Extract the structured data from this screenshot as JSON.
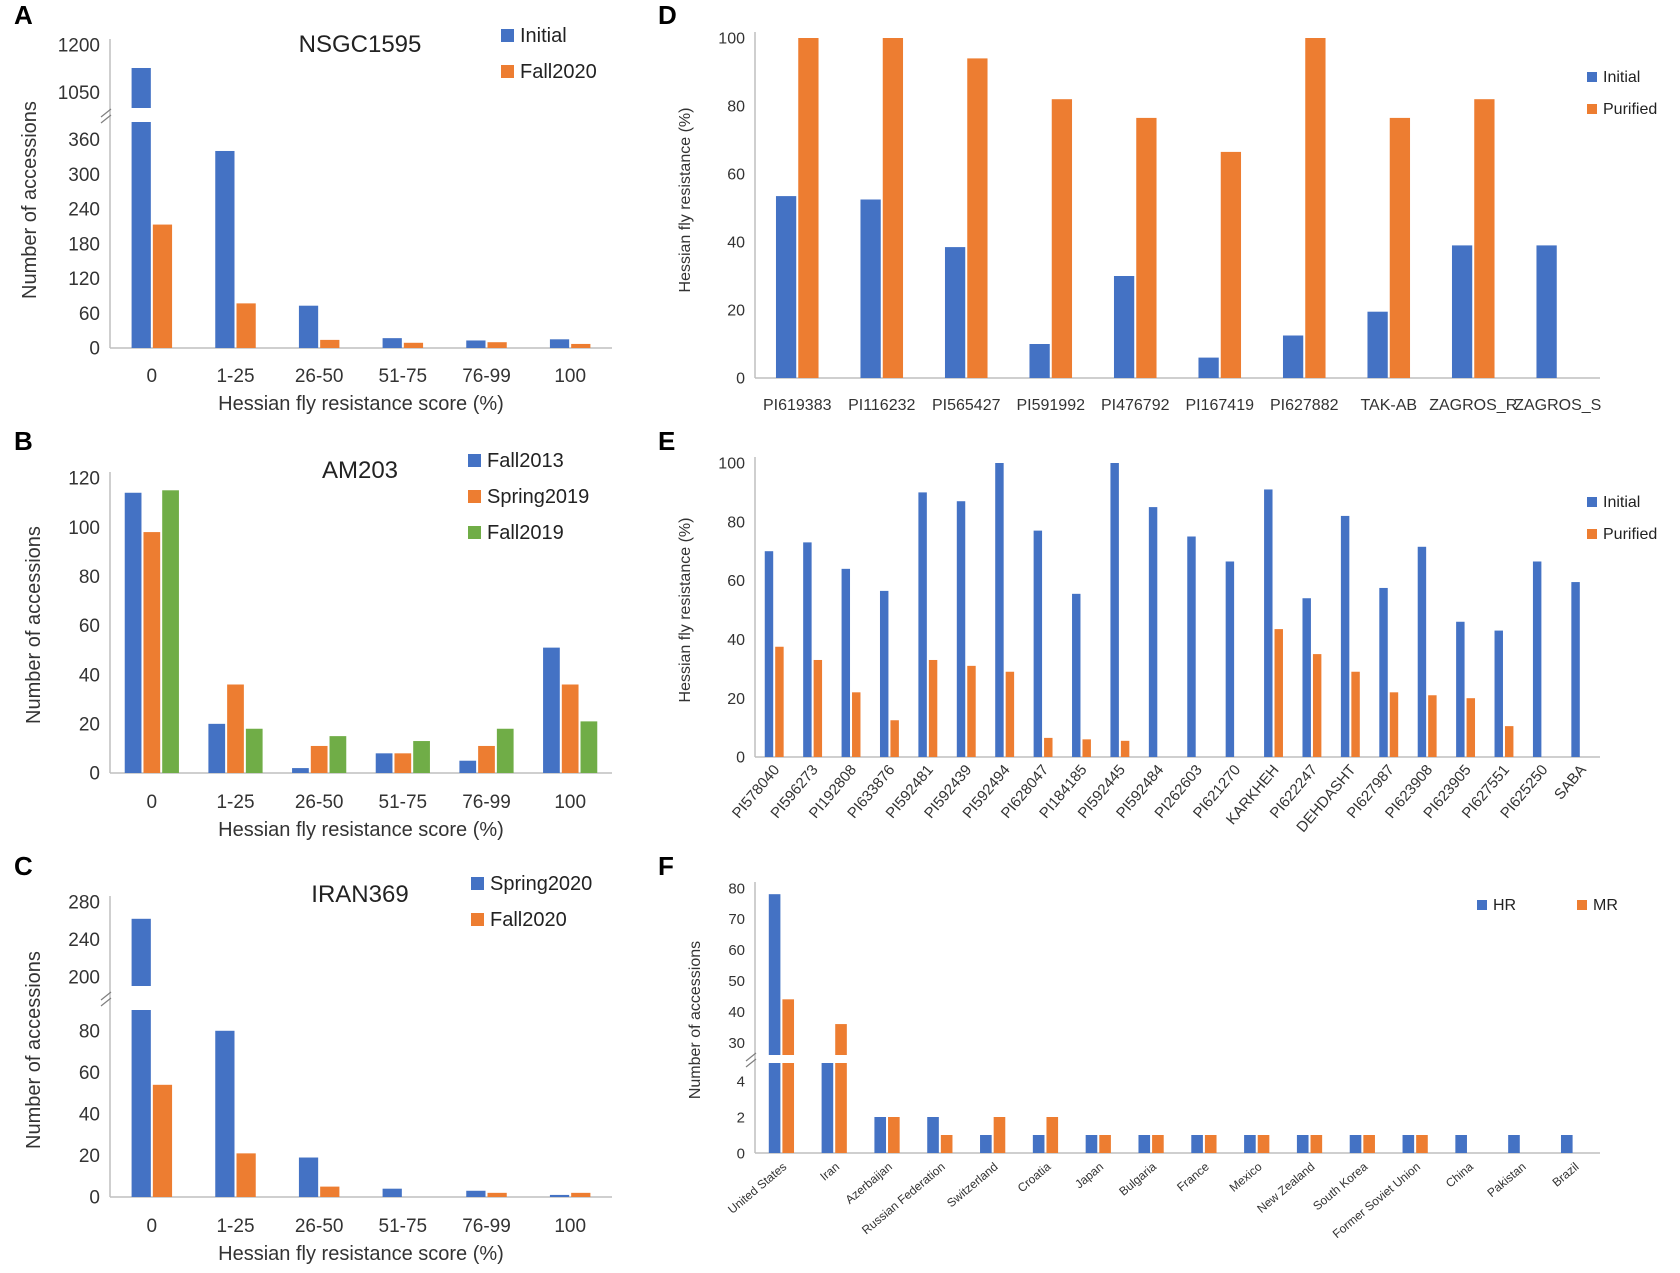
{
  "colors": {
    "blue": "#4472c4",
    "orange": "#ed7d31",
    "green": "#70ad47",
    "axis": "#bfbfbf"
  },
  "chart_data": [
    {
      "id": "A",
      "letter": "A",
      "type": "bar",
      "title": "NSGC1595",
      "categories": [
        "0",
        "1-25",
        "26-50",
        "51-75",
        "76-99",
        "100"
      ],
      "series": [
        {
          "name": "Initial",
          "color": "#4472c4",
          "values": [
            1127,
            340,
            73,
            17,
            13,
            15
          ]
        },
        {
          "name": "Fall2020",
          "color": "#ed7d31",
          "values": [
            213,
            77,
            14,
            9,
            10,
            7
          ]
        }
      ],
      "xlabel": "Hessian fly resistance score (%)",
      "ylabel": "Number of accessions",
      "yticks": [
        "0",
        "60",
        "120",
        "180",
        "240",
        "300",
        "360",
        "1050",
        "1200"
      ],
      "ylim": [
        0,
        1200
      ],
      "axis_break": {
        "lower_max": 390,
        "upper_min": 1000
      },
      "legend": "top-right"
    },
    {
      "id": "B",
      "letter": "B",
      "type": "bar",
      "title": "AM203",
      "categories": [
        "0",
        "1-25",
        "26-50",
        "51-75",
        "76-99",
        "100"
      ],
      "series": [
        {
          "name": "Fall2013",
          "color": "#4472c4",
          "values": [
            114,
            20,
            2,
            8,
            5,
            51
          ]
        },
        {
          "name": "Spring2019",
          "color": "#ed7d31",
          "values": [
            98,
            36,
            11,
            8,
            11,
            36
          ]
        },
        {
          "name": "Fall2019",
          "color": "#70ad47",
          "values": [
            115,
            18,
            15,
            13,
            18,
            21
          ]
        }
      ],
      "xlabel": "Hessian fly resistance score (%)",
      "ylabel": "Number of accessions",
      "yticks": [
        "0",
        "20",
        "40",
        "60",
        "80",
        "100",
        "120"
      ],
      "ylim": [
        0,
        120
      ],
      "legend": "top-right"
    },
    {
      "id": "C",
      "letter": "C",
      "type": "bar",
      "title": "IRAN369",
      "categories": [
        "0",
        "1-25",
        "26-50",
        "51-75",
        "76-99",
        "100"
      ],
      "series": [
        {
          "name": "Spring2020",
          "color": "#4472c4",
          "values": [
            262,
            80,
            19,
            4,
            3,
            1
          ]
        },
        {
          "name": "Fall2020",
          "color": "#ed7d31",
          "values": [
            54,
            21,
            5,
            0,
            2,
            2
          ]
        }
      ],
      "xlabel": "Hessian fly resistance score (%)",
      "ylabel": "Number of accessions",
      "yticks": [
        "0",
        "20",
        "40",
        "60",
        "80",
        "200",
        "240",
        "280"
      ],
      "ylim": [
        0,
        280
      ],
      "axis_break": {
        "lower_max": 90,
        "upper_min": 190
      },
      "legend": "top-right"
    },
    {
      "id": "D",
      "letter": "D",
      "type": "bar",
      "title": "",
      "categories": [
        "PI619383",
        "PI116232",
        "PI565427",
        "PI591992",
        "PI476792",
        "PI167419",
        "PI627882",
        "TAK-AB",
        "ZAGROS_R",
        "ZAGROS_S"
      ],
      "series": [
        {
          "name": "Initial",
          "color": "#4472c4",
          "values": [
            53.5,
            52.5,
            38.5,
            10,
            30,
            6,
            12.5,
            19.5,
            39,
            39
          ]
        },
        {
          "name": "Purified",
          "color": "#ed7d31",
          "values": [
            100,
            100,
            94,
            82,
            76.5,
            66.5,
            100,
            76.5,
            82,
            0
          ]
        }
      ],
      "xlabel": "",
      "ylabel": "Hessian fly resistance (%)",
      "yticks": [
        "0",
        "20",
        "40",
        "60",
        "80",
        "100"
      ],
      "ylim": [
        0,
        100
      ],
      "legend": "right"
    },
    {
      "id": "E",
      "letter": "E",
      "type": "bar",
      "title": "",
      "categories": [
        "PI578040",
        "PI596273",
        "PI192808",
        "PI633876",
        "PI592481",
        "PI592439",
        "PI592494",
        "PI628047",
        "PI184185",
        "PI592445",
        "PI592484",
        "PI262603",
        "PI621270",
        "KARKHEH",
        "PI622247",
        "DEHDASHT",
        "PI627987",
        "PI623908",
        "PI623905",
        "PI627551",
        "PI625250",
        "SABA"
      ],
      "series": [
        {
          "name": "Initial",
          "color": "#4472c4",
          "values": [
            70,
            73,
            64,
            56.5,
            90,
            87,
            100,
            77,
            55.5,
            100,
            85,
            75,
            66.5,
            91,
            54,
            82,
            57.5,
            71.5,
            46,
            43,
            66.5,
            59.5
          ]
        },
        {
          "name": "Purified",
          "color": "#ed7d31",
          "values": [
            37.5,
            33,
            22,
            12.5,
            33,
            31,
            29,
            6.5,
            6,
            5.5,
            0,
            0,
            0,
            43.5,
            35,
            29,
            22,
            21,
            20,
            10.5,
            0,
            0
          ]
        }
      ],
      "xlabel": "",
      "ylabel": "Hessian fly resistance (%)",
      "yticks": [
        "0",
        "20",
        "40",
        "60",
        "80",
        "100"
      ],
      "ylim": [
        0,
        100
      ],
      "legend": "right"
    },
    {
      "id": "F",
      "letter": "F",
      "type": "bar",
      "title": "",
      "categories": [
        "United States",
        "Iran",
        "Azerbaijan",
        "Russian Federation",
        "Switzerland",
        "Croatia",
        "Japan",
        "Bulgaria",
        "France",
        "Mexico",
        "New Zealand",
        "South Korea",
        "Former Soviet Union",
        "China",
        "Pakistan",
        "Brazil"
      ],
      "series": [
        {
          "name": "HR",
          "color": "#4472c4",
          "values": [
            78,
            5,
            2,
            2,
            1,
            1,
            1,
            1,
            1,
            1,
            1,
            1,
            1,
            1,
            1,
            1
          ]
        },
        {
          "name": "MR",
          "color": "#ed7d31",
          "values": [
            44,
            36,
            2,
            1,
            2,
            2,
            1,
            1,
            1,
            1,
            1,
            1,
            1,
            0,
            0,
            0
          ]
        }
      ],
      "xlabel": "",
      "ylabel": "Number of accessions",
      "yticks": [
        "0",
        "2",
        "4",
        "30",
        "40",
        "50",
        "60",
        "70",
        "80"
      ],
      "ylim": [
        0,
        80
      ],
      "axis_break": {
        "lower_max": 5,
        "upper_min": 26
      },
      "legend": "top-right"
    }
  ]
}
